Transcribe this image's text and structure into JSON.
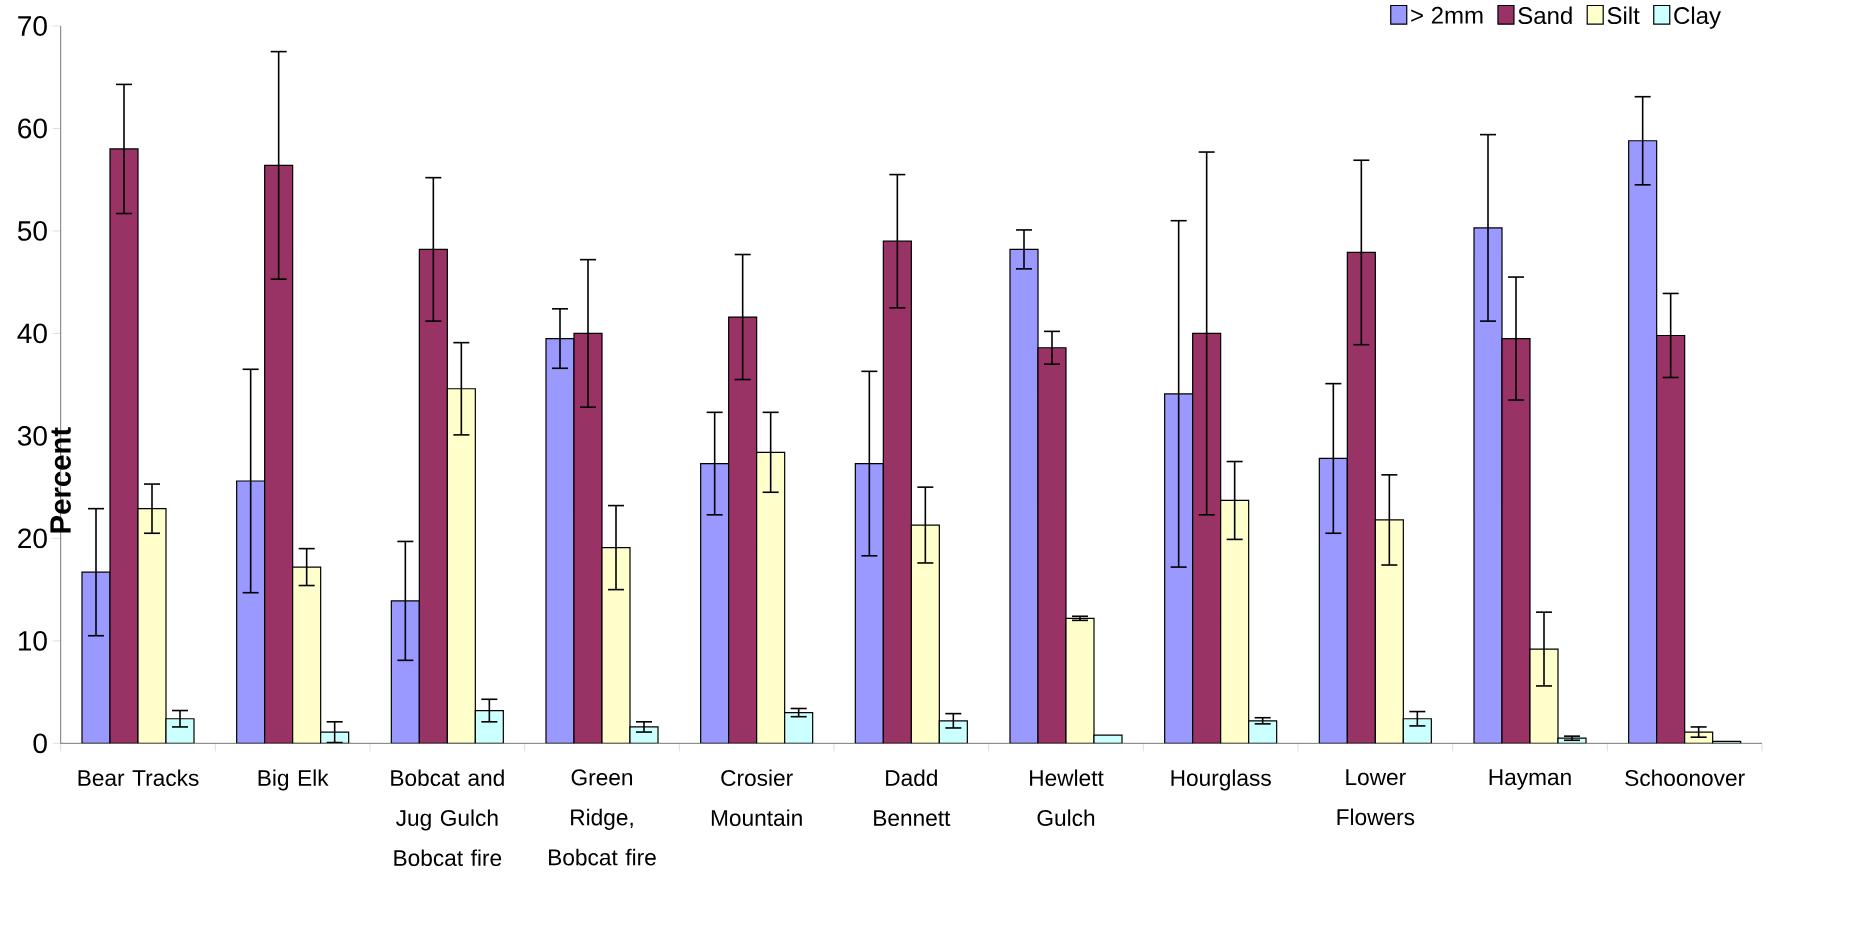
{
  "chart_data": {
    "type": "bar",
    "ylabel": "Percent",
    "categories": [
      "Bear Tracks",
      "Big Elk",
      "Bobcat and Jug Gulch Bobcat fire",
      "Green Ridge, Bobcat fire",
      "Crosier Mountain",
      "Dadd Bennett",
      "Hewlett Gulch",
      "Hourglass",
      "Lower Flowers",
      "Hayman",
      "Schoonover"
    ],
    "series": [
      {
        "name": "> 2mm",
        "color": "#9999ff",
        "values": [
          16.7,
          25.6,
          13.9,
          39.5,
          27.3,
          27.3,
          48.2,
          34.1,
          27.8,
          50.3,
          58.8
        ],
        "errors": [
          6.2,
          10.9,
          5.8,
          2.9,
          5.0,
          9.0,
          1.9,
          16.9,
          7.3,
          9.1,
          4.3
        ]
      },
      {
        "name": "Sand",
        "color": "#993366",
        "values": [
          58.0,
          56.4,
          48.2,
          40.0,
          41.6,
          49.0,
          38.6,
          40.0,
          47.9,
          39.5,
          39.8
        ],
        "errors": [
          6.3,
          11.1,
          7.0,
          7.2,
          6.1,
          6.5,
          1.6,
          17.7,
          9.0,
          6.0,
          4.1
        ]
      },
      {
        "name": "Silt",
        "color": "#ffffcc",
        "values": [
          22.9,
          17.2,
          34.6,
          19.1,
          28.4,
          21.3,
          12.2,
          23.7,
          21.8,
          9.2,
          1.1
        ],
        "errors": [
          2.4,
          1.8,
          4.5,
          4.1,
          3.9,
          3.7,
          0.2,
          3.8,
          4.4,
          3.6,
          0.5
        ]
      },
      {
        "name": "Clay",
        "color": "#ccffff",
        "values": [
          2.4,
          1.1,
          3.2,
          1.6,
          3.0,
          2.2,
          0.8,
          2.2,
          2.4,
          0.5,
          0.2
        ],
        "errors": [
          0.8,
          1.0,
          1.1,
          0.5,
          0.4,
          0.7,
          null,
          0.3,
          0.7,
          0.2,
          null
        ]
      }
    ],
    "ylim": [
      0,
      70
    ],
    "yticks": [
      0,
      10,
      20,
      30,
      40,
      50,
      60,
      70
    ],
    "legend": "top right"
  }
}
